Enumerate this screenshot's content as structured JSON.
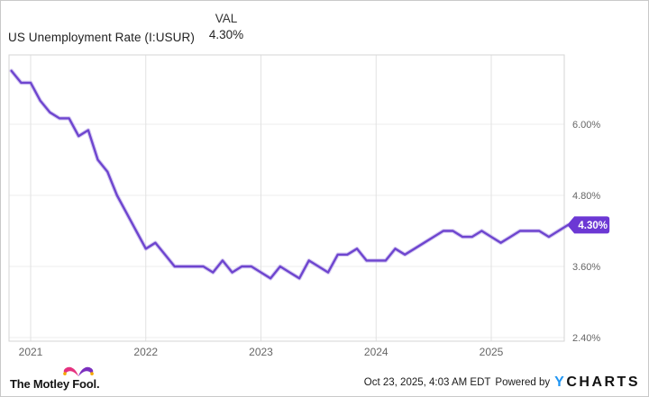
{
  "header": {
    "title": "US Unemployment Rate (I:USUR)",
    "value_column_label": "VAL",
    "latest_value": "4.30%"
  },
  "chart_data": {
    "type": "line",
    "title": "US Unemployment Rate (I:USUR)",
    "xlabel": "",
    "ylabel": "",
    "unit": "%",
    "start_month": "2020-10",
    "frequency": "monthly",
    "values": [
      6.9,
      6.7,
      6.7,
      6.4,
      6.2,
      6.1,
      6.1,
      5.8,
      5.9,
      5.4,
      5.2,
      4.8,
      4.5,
      4.2,
      3.9,
      4.0,
      3.8,
      3.6,
      3.6,
      3.6,
      3.6,
      3.5,
      3.7,
      3.5,
      3.6,
      3.6,
      3.5,
      3.4,
      3.6,
      3.5,
      3.4,
      3.7,
      3.6,
      3.5,
      3.8,
      3.8,
      3.9,
      3.7,
      3.7,
      3.7,
      3.9,
      3.8,
      3.9,
      4.0,
      4.1,
      4.2,
      4.2,
      4.1,
      4.1,
      4.2,
      4.1,
      4.0,
      4.1,
      4.2,
      4.2,
      4.2,
      4.1,
      4.2,
      4.3
    ],
    "latest_value_label": "4.30%",
    "ylim": [
      2.3,
      7.2
    ],
    "grid": true,
    "legend_position": "none",
    "yticks": [
      {
        "value": 6.0,
        "label": "6.00%"
      },
      {
        "value": 4.8,
        "label": "4.80%"
      },
      {
        "value": 3.6,
        "label": "3.60%"
      },
      {
        "value": 2.4,
        "label": "2.40%"
      }
    ],
    "xticks": [
      {
        "year": 2021,
        "label": "2021"
      },
      {
        "year": 2022,
        "label": "2022"
      },
      {
        "year": 2023,
        "label": "2023"
      },
      {
        "year": 2024,
        "label": "2024"
      },
      {
        "year": 2025,
        "label": "2025"
      }
    ]
  },
  "colors": {
    "line": "#6e45cf",
    "line_halo": "#b5a0e8",
    "badge_bg": "#6c38d4",
    "badge_text": "#ffffff",
    "grid_horizontal": "#ececec",
    "grid_vertical": "#e2e2e2",
    "plot_border": "#d6d6d6",
    "tick_text": "#666666",
    "title_text": "#222222",
    "ycharts_blue": "#2196f3",
    "fool_magenta": "#e5317f",
    "fool_purple": "#7b2fbe",
    "fool_gold": "#f5a800"
  },
  "footer": {
    "brand": "The Motley Fool.",
    "timestamp": "Oct 23, 2025, 4:03 AM EDT",
    "powered_by": "Powered by",
    "ycharts_y": "Y",
    "ycharts_rest": "CHARTS"
  }
}
